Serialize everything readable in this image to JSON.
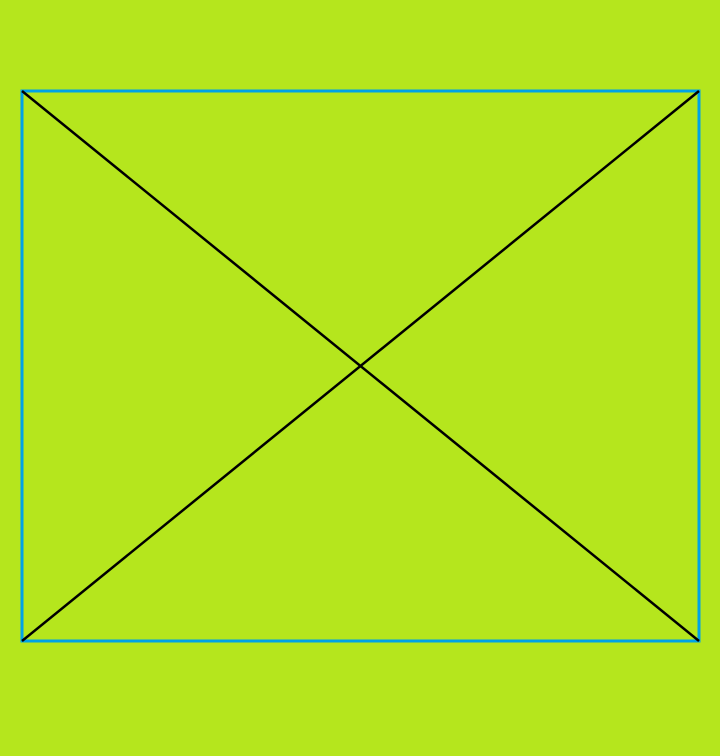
{
  "colors": {
    "background": "#b5e61d",
    "frame_stroke": "#00a2e8",
    "diagonal_stroke": "#000000"
  }
}
